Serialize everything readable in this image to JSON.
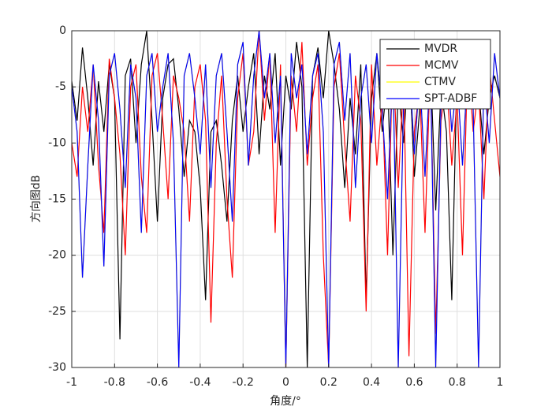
{
  "chart_data": {
    "type": "line",
    "xlabel": "角度/°",
    "ylabel": "方向图dB",
    "x": [
      -1,
      -0.975,
      -0.95,
      -0.925,
      -0.9,
      -0.875,
      -0.85,
      -0.825,
      -0.8,
      -0.775,
      -0.75,
      -0.725,
      -0.7,
      -0.675,
      -0.65,
      -0.625,
      -0.6,
      -0.575,
      -0.55,
      -0.525,
      -0.5,
      -0.475,
      -0.45,
      -0.425,
      -0.4,
      -0.375,
      -0.35,
      -0.325,
      -0.3,
      -0.275,
      -0.25,
      -0.225,
      -0.2,
      -0.175,
      -0.15,
      -0.125,
      -0.1,
      -0.075,
      -0.05,
      -0.025,
      0,
      0.025,
      0.05,
      0.075,
      0.1,
      0.125,
      0.15,
      0.175,
      0.2,
      0.225,
      0.25,
      0.275,
      0.3,
      0.325,
      0.35,
      0.375,
      0.4,
      0.425,
      0.45,
      0.475,
      0.5,
      0.525,
      0.55,
      0.575,
      0.6,
      0.625,
      0.65,
      0.675,
      0.7,
      0.725,
      0.75,
      0.775,
      0.8,
      0.825,
      0.85,
      0.875,
      0.9,
      0.925,
      0.95,
      0.975,
      1
    ],
    "series": [
      {
        "name": "MVDR",
        "color": "#000000",
        "values": [
          -4.5,
          -8,
          -1.5,
          -6,
          -12,
          -4.5,
          -9,
          -3,
          -6,
          -27.5,
          -4,
          -2.5,
          -10,
          -3,
          0,
          -8,
          -17,
          -6,
          -3,
          -2.5,
          -7,
          -13,
          -8,
          -9,
          -14,
          -24,
          -9,
          -8,
          -12,
          -17,
          -8,
          -4,
          -9,
          -5,
          -2,
          -11,
          -4,
          -7,
          -2,
          -12,
          -4,
          -7,
          -1,
          -5,
          -30,
          -4,
          -1.5,
          -6,
          0,
          -3,
          -7,
          -14,
          -6,
          -11,
          -3,
          -24,
          -6,
          -2,
          -9,
          -4,
          -20,
          -5,
          -10,
          -2,
          -13,
          -7,
          -6,
          -2.5,
          -16,
          -5,
          -9,
          -24,
          -3,
          -4,
          -1,
          -6,
          -5,
          -11,
          -6,
          -4,
          -6
        ]
      },
      {
        "name": "MCMV",
        "color": "#ff0000",
        "values": [
          -10,
          -13,
          -5,
          -9,
          -3,
          -12,
          -18,
          -2.5,
          -6,
          -11,
          -20,
          -5,
          -3,
          -13,
          -18,
          -4,
          -2,
          -8,
          -15,
          -4,
          -6,
          -9,
          -17,
          -5,
          -3,
          -8,
          -26,
          -10,
          -4,
          -15,
          -22,
          -6,
          -2,
          -12,
          -9,
          0,
          -8,
          -2,
          -18,
          -3,
          -30,
          -4,
          -9,
          -1,
          -12,
          -6,
          -3,
          -20,
          -30,
          -5,
          -2,
          -10,
          -17,
          -4,
          -8,
          -25,
          -3,
          -12,
          -6,
          -20,
          -2,
          -14,
          -4,
          -29,
          -9,
          -5,
          -18,
          -3,
          -27,
          -8,
          -4,
          -12,
          -6,
          -20,
          -2,
          -9,
          -5,
          -15,
          -3,
          -8,
          -13
        ]
      },
      {
        "name": "CTMV",
        "color": "#ffff00",
        "values": [
          -5,
          -9,
          -22,
          -12,
          -3,
          -8,
          -21,
          -4,
          -2,
          -7,
          -14,
          -3,
          -6,
          -18,
          -4,
          -2,
          -9,
          -5,
          -2,
          -10,
          -30,
          -4,
          -2,
          -6,
          -11,
          -3,
          -14,
          -4,
          -2,
          -9,
          -17,
          -3,
          -1,
          -12,
          -4,
          0,
          -6,
          -2,
          -10,
          -4,
          -30,
          -2,
          -6,
          -3,
          -11,
          -4,
          -2,
          -9,
          -30,
          -3,
          -1,
          -8,
          -2,
          -14,
          -6,
          -3,
          -10,
          -2,
          -7,
          -15,
          -3,
          -30,
          -6,
          -2,
          -11,
          -4,
          -13,
          -3,
          -30,
          -6,
          -2,
          -9,
          -4,
          -12,
          -3,
          -7,
          -30,
          -4,
          -10,
          -2,
          -6
        ]
      },
      {
        "name": "SPT-ADBF",
        "color": "#0000ff",
        "values": [
          -5,
          -9,
          -22,
          -12,
          -3,
          -8,
          -21,
          -4,
          -2,
          -7,
          -14,
          -3,
          -6,
          -18,
          -4,
          -2,
          -9,
          -5,
          -2,
          -10,
          -30,
          -4,
          -2,
          -6,
          -11,
          -3,
          -14,
          -4,
          -2,
          -9,
          -17,
          -3,
          -1,
          -12,
          -4,
          0,
          -6,
          -2,
          -10,
          -4,
          -30,
          -2,
          -6,
          -3,
          -11,
          -4,
          -2,
          -9,
          -30,
          -3,
          -1,
          -8,
          -2,
          -14,
          -6,
          -3,
          -10,
          -2,
          -7,
          -15,
          -3,
          -30,
          -6,
          -2,
          -11,
          -4,
          -13,
          -3,
          -30,
          -6,
          -2,
          -9,
          -4,
          -12,
          -3,
          -7,
          -30,
          -4,
          -10,
          -2,
          -6
        ]
      }
    ],
    "xlim": [
      -1,
      1
    ],
    "xticks": [
      -1,
      -0.8,
      -0.6,
      -0.4,
      -0.2,
      0,
      0.2,
      0.4,
      0.6,
      0.8,
      1
    ],
    "ylim": [
      -30,
      0
    ],
    "yticks": [
      -30,
      -25,
      -20,
      -15,
      -10,
      -5,
      0
    ],
    "grid": true,
    "legend": "northeast"
  }
}
